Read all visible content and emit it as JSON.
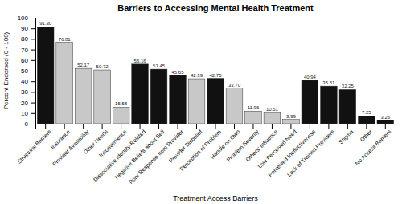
{
  "chart_data": {
    "type": "bar",
    "title": "Barriers to Accessing Mental Health Treatment",
    "xlabel": "Treatment Access Barriers",
    "ylabel": "Percent Endorsed (0 - 100)",
    "categories": [
      "Structural Barriers",
      "Insurance",
      "Provider Availability",
      "Other Needs",
      "Inconvenience",
      "Dissociative Identity-Related",
      "Negative Beliefs about Self",
      "Poor Response from Provider",
      "Provider Disbelief",
      "Perception of Problem",
      "Handle on Own",
      "Problem Severity",
      "Others' Influence",
      "Low Perceived Need",
      "Perceived Ineffectiveness",
      "Lack of Trained Providers",
      "Stigma",
      "Other",
      "No Access Barriers"
    ],
    "values": [
      91.3,
      76.81,
      52.17,
      50.72,
      15.58,
      56.16,
      51.45,
      45.65,
      42.39,
      42.75,
      33.7,
      11.96,
      10.51,
      3.99,
      40.94,
      35.51,
      32.25,
      7.25,
      3.26
    ],
    "value_labels": [
      "91.30",
      "76.81",
      "52.17",
      "50.72",
      "15.58",
      "56.16",
      "51.45",
      "45.65",
      "42.39",
      "42.75",
      "33.70",
      "11.96",
      "10.51",
      "3.99",
      "40.94",
      "35.51",
      "32.25",
      "7.25",
      "3.26"
    ],
    "colors": [
      "#111111",
      "#c8c8c8",
      "#c8c8c8",
      "#c8c8c8",
      "#c8c8c8",
      "#111111",
      "#111111",
      "#111111",
      "#c8c8c8",
      "#111111",
      "#c8c8c8",
      "#c8c8c8",
      "#c8c8c8",
      "#c8c8c8",
      "#111111",
      "#111111",
      "#111111",
      "#111111",
      "#111111"
    ],
    "ylim": [
      0,
      100
    ],
    "yticks": [
      0,
      10,
      20,
      30,
      40,
      50,
      60,
      70,
      80,
      90,
      100
    ],
    "grid": false,
    "data_labels": true
  }
}
